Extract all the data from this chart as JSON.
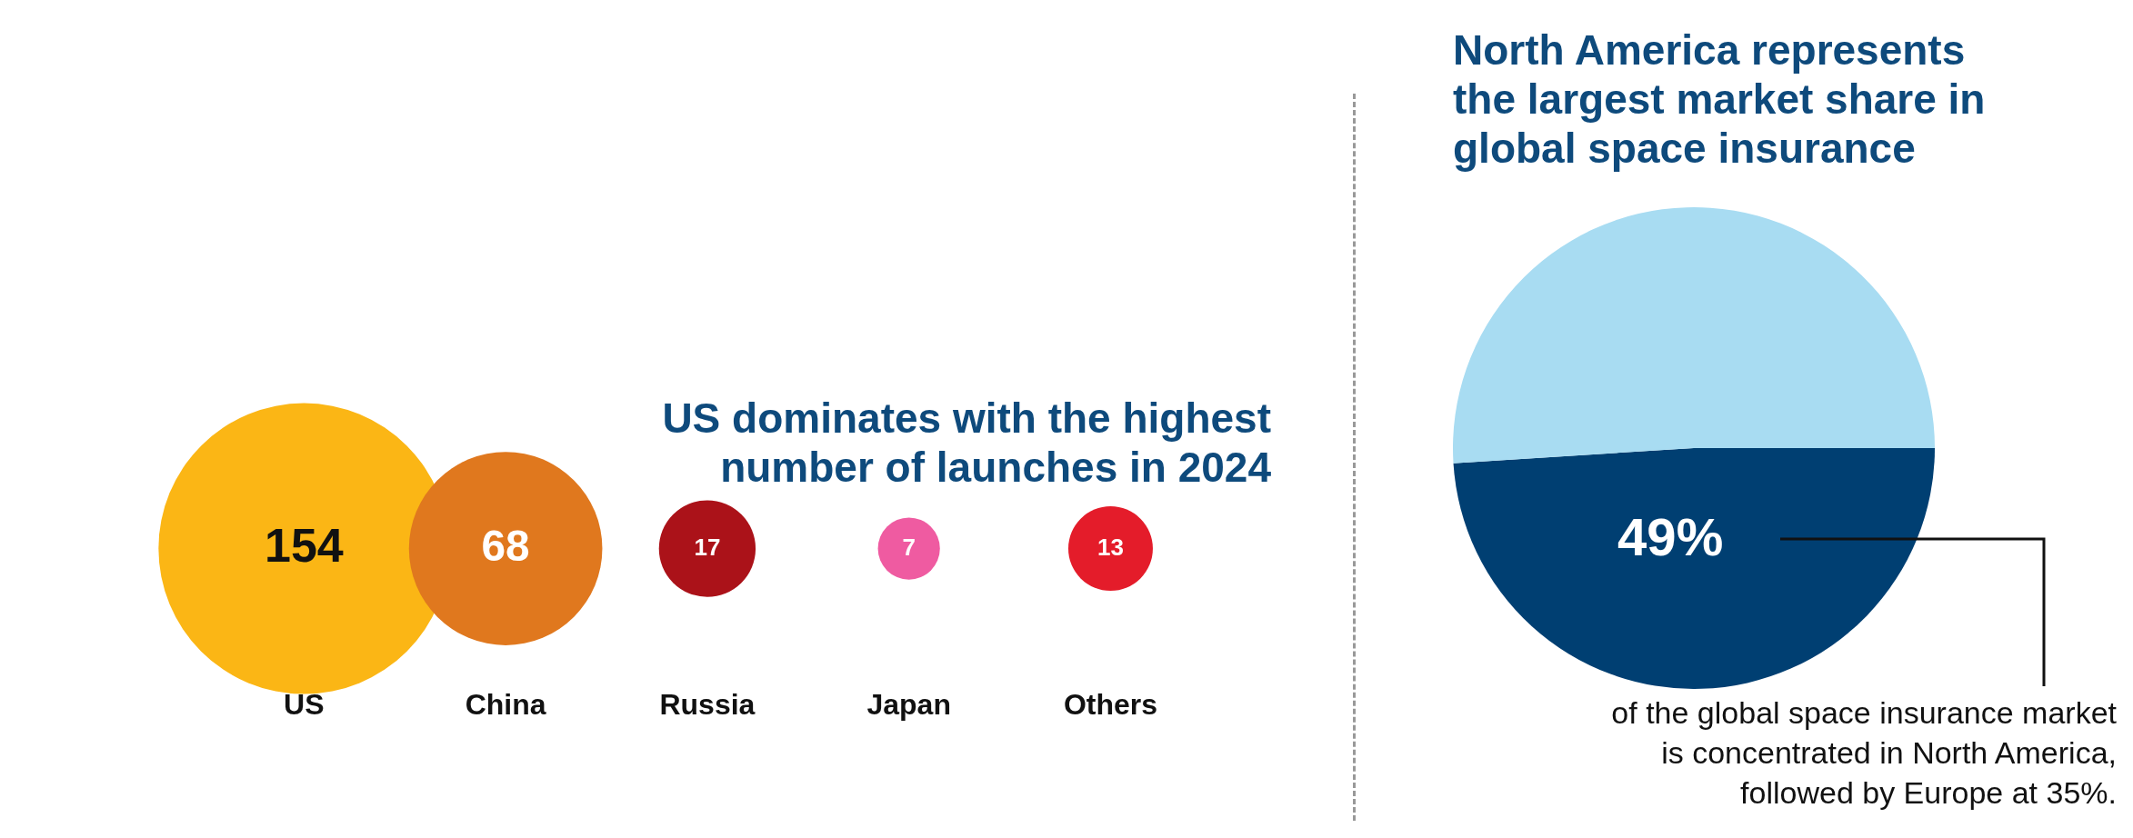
{
  "chart_data": [
    {
      "type": "other",
      "title": "US dominates with the highest number of launches in 2024",
      "categories": [
        "US",
        "China",
        "Russia",
        "Japan",
        "Others"
      ],
      "values": [
        154,
        68,
        17,
        7,
        13
      ],
      "colors": [
        "#fbb615",
        "#e0781e",
        "#ab1219",
        "#ef5ba1",
        "#e41c2a"
      ],
      "data_labels": true
    },
    {
      "type": "pie",
      "title": "North America represents the largest market share in global space insurance",
      "categories": [
        null,
        null
      ],
      "values": [
        49,
        51
      ],
      "colors": [
        "#003f72",
        "#a8dcf2"
      ],
      "value_labels": [
        "49%",
        null
      ],
      "annotations": [
        "of the global space insurance market is concentrated in North America, followed by Europe at 35%."
      ]
    }
  ]
}
